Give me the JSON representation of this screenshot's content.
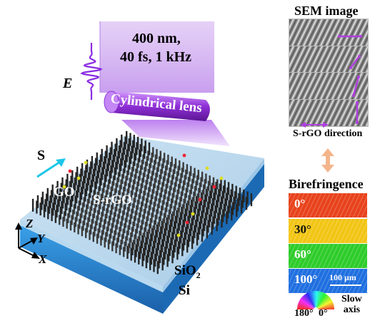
{
  "laser": {
    "line1": "400 nm,",
    "line2": "40 fs, 1 kHz"
  },
  "labels": {
    "field": "E",
    "lens": "Cylindrical lens",
    "scan": "S",
    "go": "GO",
    "srgo": "S-rGO",
    "sio2_main": "SiO",
    "sio2_sub": "2",
    "si": "Si"
  },
  "axes": {
    "z": "Z",
    "y": "Y",
    "x": "X"
  },
  "sem": {
    "title": "SEM image",
    "direction_label": "S-rGO direction",
    "panels": [
      {
        "arrow": "horizontal"
      },
      {
        "arrow": "diagonal-low"
      },
      {
        "arrow": "diagonal-steep"
      },
      {
        "arrow": "vertical"
      }
    ]
  },
  "birefringence": {
    "title": "Birefringence",
    "panels": [
      {
        "label": "0°",
        "color": "#e8421c"
      },
      {
        "label": "30°",
        "color": "#f2c514"
      },
      {
        "label": "60°",
        "color": "#2ecc2a"
      },
      {
        "label": "100°",
        "color": "#1f6fe0"
      }
    ],
    "scale_bar": "100 μm",
    "color_wheel": {
      "left": "180°",
      "right": "0°"
    },
    "axis_label": "Slow\naxis"
  },
  "colors": {
    "laser": "#8a2be2",
    "substrate": "#2e8bd6",
    "arrow_s": "#1ec6e8",
    "sem_arrow": "#b03fe0",
    "pillar": "#2a2a2a"
  }
}
